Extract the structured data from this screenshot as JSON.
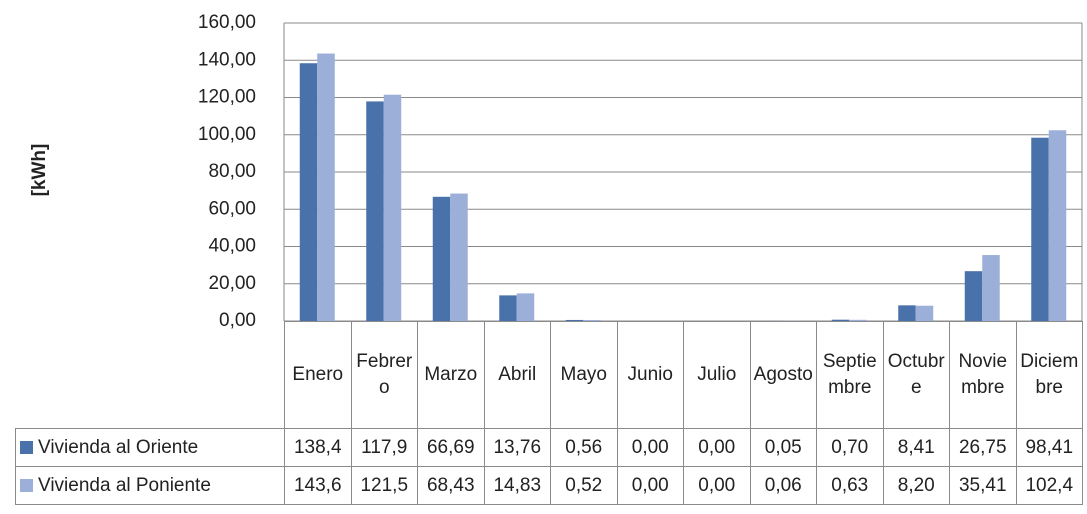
{
  "chart_data": {
    "type": "bar",
    "y_label": "[kWh]",
    "categories": [
      "Enero",
      "Febrero",
      "Marzo",
      "Abril",
      "Mayo",
      "Junio",
      "Julio",
      "Agosto",
      "Septiembre",
      "Octubre",
      "Noviembre",
      "Diciembre"
    ],
    "series": [
      {
        "name": "Vivienda al Oriente",
        "color": "#4a72aa",
        "values": [
          138.4,
          117.9,
          66.69,
          13.76,
          0.56,
          0,
          0,
          0.05,
          0.7,
          8.41,
          26.75,
          98.41
        ],
        "value_labels": [
          "138,4",
          "117,9",
          "66,69",
          "13,76",
          "0,56",
          "0,00",
          "0,00",
          "0,05",
          "0,70",
          "8,41",
          "26,75",
          "98,41"
        ]
      },
      {
        "name": "Vivienda al Poniente",
        "color": "#9bafd8",
        "values": [
          143.6,
          121.5,
          68.43,
          14.83,
          0.52,
          0,
          0,
          0.06,
          0.63,
          8.2,
          35.41,
          102.4
        ],
        "value_labels": [
          "143,6",
          "121,5",
          "68,43",
          "14,83",
          "0,52",
          "0,00",
          "0,00",
          "0,06",
          "0,63",
          "8,20",
          "35,41",
          "102,4"
        ]
      }
    ],
    "ylim": [
      0,
      160
    ],
    "yticks": [
      {
        "value": 0,
        "label": "0,00"
      },
      {
        "value": 20,
        "label": "20,00"
      },
      {
        "value": 40,
        "label": "40,00"
      },
      {
        "value": 60,
        "label": "60,00"
      },
      {
        "value": 80,
        "label": "80,00"
      },
      {
        "value": 100,
        "label": "100,00"
      },
      {
        "value": 120,
        "label": "120,00"
      },
      {
        "value": 140,
        "label": "140,00"
      },
      {
        "value": 160,
        "label": "160,00"
      }
    ],
    "grid": true
  }
}
